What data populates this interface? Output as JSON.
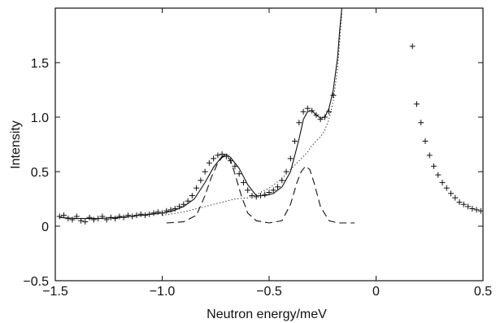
{
  "chart_data": {
    "type": "scatter",
    "title": "",
    "xlabel": "Neutron energy/meV",
    "ylabel": "Intensity",
    "xlim": [
      -1.5,
      0.5
    ],
    "ylim": [
      -0.5,
      2.0
    ],
    "xticks": [
      -1.5,
      -1.0,
      -0.5,
      0,
      0.5
    ],
    "xtick_labels": [
      "−1.5",
      "−1.0",
      "−0.5",
      "0",
      "0.5"
    ],
    "yticks": [
      -0.5,
      0,
      0.5,
      1.0,
      1.5
    ],
    "ytick_labels": [
      "−0.5",
      "0",
      "0.5",
      "1.0",
      "1.5"
    ],
    "grid": false,
    "legend": "none",
    "series": [
      {
        "type": "scatter",
        "marker": "plus",
        "x": [
          -1.48,
          -1.46,
          -1.44,
          -1.42,
          -1.4,
          -1.38,
          -1.36,
          -1.34,
          -1.32,
          -1.3,
          -1.28,
          -1.26,
          -1.24,
          -1.22,
          -1.2,
          -1.18,
          -1.16,
          -1.14,
          -1.12,
          -1.1,
          -1.08,
          -1.06,
          -1.04,
          -1.02,
          -1.0,
          -0.98,
          -0.96,
          -0.94,
          -0.92,
          -0.9,
          -0.88,
          -0.86,
          -0.84,
          -0.82,
          -0.8,
          -0.78,
          -0.76,
          -0.74,
          -0.72,
          -0.7,
          -0.68,
          -0.66,
          -0.64,
          -0.62,
          -0.6,
          -0.58,
          -0.56,
          -0.54,
          -0.52,
          -0.5,
          -0.48,
          -0.46,
          -0.44,
          -0.42,
          -0.4,
          -0.38,
          -0.36,
          -0.34,
          -0.32,
          -0.3,
          -0.28,
          -0.26,
          -0.24,
          -0.22,
          -0.2,
          0.17,
          0.19,
          0.21,
          0.23,
          0.25,
          0.27,
          0.29,
          0.31,
          0.33,
          0.35,
          0.37,
          0.39,
          0.41,
          0.43,
          0.45,
          0.47,
          0.49
        ],
        "y": [
          0.09,
          0.1,
          0.07,
          0.06,
          0.09,
          0.05,
          0.04,
          0.08,
          0.06,
          0.07,
          0.09,
          0.06,
          0.08,
          0.07,
          0.09,
          0.08,
          0.1,
          0.09,
          0.1,
          0.11,
          0.1,
          0.11,
          0.12,
          0.13,
          0.12,
          0.14,
          0.15,
          0.16,
          0.18,
          0.2,
          0.23,
          0.28,
          0.35,
          0.42,
          0.5,
          0.58,
          0.62,
          0.65,
          0.66,
          0.64,
          0.6,
          0.55,
          0.48,
          0.4,
          0.33,
          0.28,
          0.27,
          0.28,
          0.29,
          0.31,
          0.33,
          0.36,
          0.42,
          0.5,
          0.62,
          0.78,
          0.95,
          1.05,
          1.08,
          1.06,
          1.02,
          0.98,
          1.0,
          1.05,
          1.2,
          1.65,
          1.12,
          0.95,
          0.78,
          0.65,
          0.55,
          0.47,
          0.4,
          0.35,
          0.3,
          0.26,
          0.22,
          0.2,
          0.18,
          0.16,
          0.15,
          0.14
        ]
      },
      {
        "type": "line",
        "style": "solid",
        "x": [
          -1.48,
          -1.4,
          -1.3,
          -1.2,
          -1.1,
          -1.0,
          -0.95,
          -0.9,
          -0.85,
          -0.8,
          -0.76,
          -0.72,
          -0.7,
          -0.68,
          -0.64,
          -0.6,
          -0.56,
          -0.52,
          -0.48,
          -0.44,
          -0.4,
          -0.36,
          -0.34,
          -0.32,
          -0.3,
          -0.28,
          -0.26,
          -0.24,
          -0.22,
          -0.2,
          -0.18,
          -0.17,
          -0.16
        ],
        "y": [
          0.08,
          0.07,
          0.07,
          0.08,
          0.1,
          0.12,
          0.14,
          0.18,
          0.25,
          0.4,
          0.54,
          0.64,
          0.66,
          0.63,
          0.53,
          0.38,
          0.28,
          0.28,
          0.3,
          0.36,
          0.5,
          0.8,
          0.98,
          1.05,
          1.06,
          1.02,
          0.99,
          1.0,
          1.08,
          1.25,
          1.55,
          1.8,
          2.0
        ]
      },
      {
        "type": "line",
        "style": "dashed",
        "x": [
          -0.98,
          -0.9,
          -0.84,
          -0.8,
          -0.77,
          -0.74,
          -0.72,
          -0.7,
          -0.68,
          -0.66,
          -0.63,
          -0.6,
          -0.56,
          -0.5,
          -0.44,
          -0.4,
          -0.37,
          -0.35,
          -0.33,
          -0.31,
          -0.29,
          -0.26,
          -0.22,
          -0.18,
          -0.1
        ],
        "y": [
          0.03,
          0.04,
          0.1,
          0.28,
          0.45,
          0.58,
          0.63,
          0.65,
          0.6,
          0.48,
          0.28,
          0.12,
          0.05,
          0.03,
          0.05,
          0.2,
          0.4,
          0.5,
          0.55,
          0.52,
          0.4,
          0.18,
          0.05,
          0.03,
          0.03
        ]
      },
      {
        "type": "line",
        "style": "dotted",
        "x": [
          -1.0,
          -0.9,
          -0.8,
          -0.72,
          -0.66,
          -0.6,
          -0.55,
          -0.5,
          -0.45,
          -0.4,
          -0.36,
          -0.32,
          -0.3,
          -0.28,
          -0.26,
          -0.24,
          -0.22,
          -0.2,
          -0.18,
          -0.16
        ],
        "y": [
          0.1,
          0.13,
          0.18,
          0.22,
          0.25,
          0.26,
          0.3,
          0.35,
          0.42,
          0.52,
          0.6,
          0.68,
          0.74,
          0.78,
          0.82,
          0.88,
          0.98,
          1.15,
          1.45,
          1.95
        ]
      }
    ]
  }
}
